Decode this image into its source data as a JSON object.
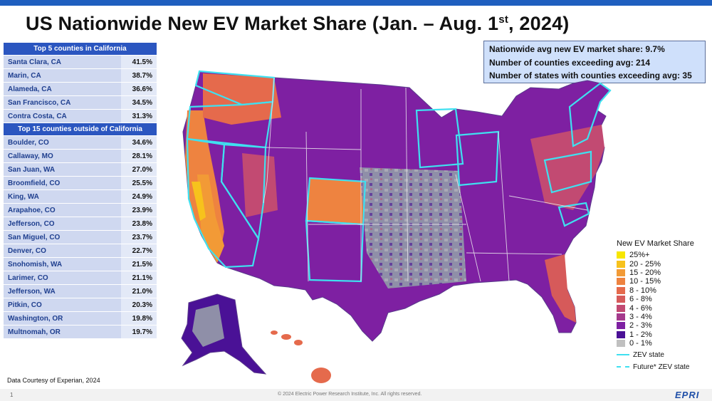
{
  "title": {
    "text": "US Nationwide New EV Market Share (Jan. – Aug. 1",
    "sup": "st",
    "tail": ", 2024)"
  },
  "top_ca": {
    "header": "Top 5 counties in California",
    "rows": [
      {
        "county": "Santa Clara, CA",
        "value": "41.5%"
      },
      {
        "county": "Marin, CA",
        "value": "38.7%"
      },
      {
        "county": "Alameda, CA",
        "value": "36.6%"
      },
      {
        "county": "San Francisco, CA",
        "value": "34.5%"
      },
      {
        "county": "Contra Costa, CA",
        "value": "31.3%"
      }
    ]
  },
  "top_other": {
    "header": "Top 15  counties outside of California",
    "rows": [
      {
        "county": "Boulder, CO",
        "value": "34.6%"
      },
      {
        "county": "Callaway, MO",
        "value": "28.1%"
      },
      {
        "county": "San Juan, WA",
        "value": "27.0%"
      },
      {
        "county": "Broomfield, CO",
        "value": "25.5%"
      },
      {
        "county": "King, WA",
        "value": "24.9%"
      },
      {
        "county": "Arapahoe, CO",
        "value": "23.9%"
      },
      {
        "county": "Jefferson, CO",
        "value": "23.8%"
      },
      {
        "county": "San Miguel, CO",
        "value": "23.7%"
      },
      {
        "county": "Denver, CO",
        "value": "22.7%"
      },
      {
        "county": "Snohomish, WA",
        "value": "21.5%"
      },
      {
        "county": "Larimer, CO",
        "value": "21.1%"
      },
      {
        "county": "Jefferson, WA",
        "value": "21.0%"
      },
      {
        "county": "Pitkin, CO",
        "value": "20.3%"
      },
      {
        "county": "Washington, OR",
        "value": "19.8%"
      },
      {
        "county": "Multnomah, OR",
        "value": "19.7%"
      }
    ]
  },
  "stats": [
    "Nationwide avg new EV market share: 9.7%",
    "Number of counties exceeding avg: 214",
    "Number of states with counties exceeding avg: 35"
  ],
  "legend": {
    "title": "New EV Market Share",
    "items": [
      {
        "label": "25%+",
        "color": "#f7e600"
      },
      {
        "label": "20 - 25%",
        "color": "#f7c21c"
      },
      {
        "label": "15 - 20%",
        "color": "#f29a36"
      },
      {
        "label": "10 - 15%",
        "color": "#ee8340"
      },
      {
        "label": "8 - 10%",
        "color": "#e56a4c"
      },
      {
        "label": "6 - 8%",
        "color": "#d65a5a"
      },
      {
        "label": "4 - 6%",
        "color": "#c24a72"
      },
      {
        "label": "3 - 4%",
        "color": "#a53a8c"
      },
      {
        "label": "2 - 3%",
        "color": "#7e20a2"
      },
      {
        "label": "1 - 2%",
        "color": "#4a1196"
      },
      {
        "label": "0 - 1%",
        "color": "#c0c0c0"
      }
    ],
    "zev_label": "ZEV state",
    "future_label": "Future* ZEV state",
    "zev_color": "#3fe0f0"
  },
  "credit": "Data Courtesy of Experian, 2024",
  "footer": {
    "page": "1",
    "copyright": "© 2024 Electric Power Research Institute, Inc. All rights reserved.",
    "logo": "EPRI"
  }
}
